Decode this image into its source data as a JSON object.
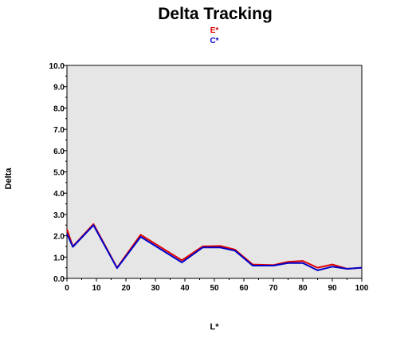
{
  "chart_data": {
    "type": "line",
    "title": "Delta Tracking",
    "xlabel": "L*",
    "ylabel": "Delta",
    "xlim": [
      0,
      100
    ],
    "ylim": [
      0,
      10
    ],
    "x_ticks": [
      "0",
      "10",
      "20",
      "30",
      "40",
      "50",
      "60",
      "70",
      "80",
      "90",
      "100"
    ],
    "y_ticks": [
      "0.0",
      "1.0",
      "2.0",
      "3.0",
      "4.0",
      "5.0",
      "6.0",
      "7.0",
      "8.0",
      "9.0",
      "10.0"
    ],
    "grid": false,
    "legend_position": "top-center",
    "plot_background": "#e6e6e6",
    "series": [
      {
        "name": "E*",
        "color": "#e00000",
        "x": [
          0,
          2,
          9,
          17,
          25,
          39,
          46,
          52,
          57,
          63,
          70,
          75,
          80,
          85,
          90,
          95,
          100
        ],
        "y": [
          2.3,
          1.5,
          2.55,
          0.5,
          2.05,
          0.85,
          1.5,
          1.52,
          1.35,
          0.65,
          0.62,
          0.78,
          0.82,
          0.5,
          0.65,
          0.45,
          0.5
        ]
      },
      {
        "name": "C*",
        "color": "#0000cc",
        "x": [
          0,
          2,
          9,
          17,
          25,
          39,
          46,
          52,
          57,
          63,
          70,
          75,
          80,
          85,
          90,
          95,
          100
        ],
        "y": [
          2.1,
          1.48,
          2.5,
          0.48,
          1.95,
          0.75,
          1.45,
          1.45,
          1.3,
          0.6,
          0.6,
          0.72,
          0.72,
          0.38,
          0.55,
          0.45,
          0.5
        ]
      }
    ]
  }
}
